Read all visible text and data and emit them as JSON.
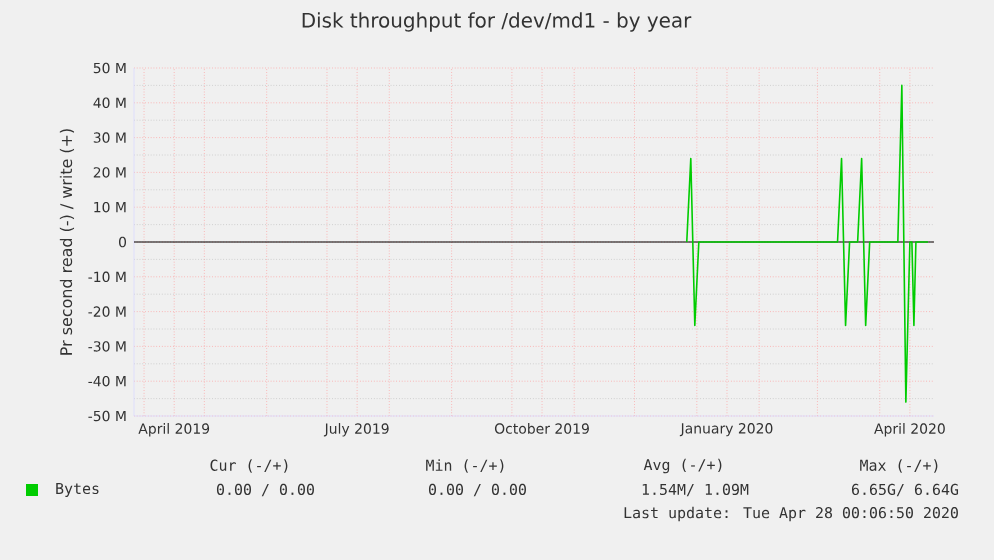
{
  "chart_data": {
    "type": "line",
    "title": "Disk throughput for /dev/md1 - by year",
    "ylabel": "Pr second read (-) / write (+)",
    "x": [
      "2019-12-27",
      "2019-12-29",
      "2019-12-31",
      "2020-01-02",
      "2020-03-11",
      "2020-03-13",
      "2020-03-15",
      "2020-03-17",
      "2020-03-21",
      "2020-03-23",
      "2020-03-25",
      "2020-03-27",
      "2020-04-10",
      "2020-04-12",
      "2020-04-14",
      "2020-04-16",
      "2020-04-17",
      "2020-04-18",
      "2020-04-19",
      "2020-04-25"
    ],
    "series": [
      {
        "name": "Bytes",
        "color": "#00cc00",
        "values": [
          0,
          24,
          -24,
          0,
          0,
          24,
          -24,
          0,
          0,
          24,
          -24,
          0,
          0,
          45,
          -46,
          0,
          0,
          -24,
          0,
          0
        ]
      }
    ],
    "xlim": [
      "2019-03-27",
      "2020-04-28"
    ],
    "xticks": [
      {
        "value": "2019-04-01",
        "label": null
      },
      {
        "value": "2019-04-16",
        "label": "April 2019"
      },
      {
        "value": "2019-05-01",
        "label": null
      },
      {
        "value": "2019-06-01",
        "label": null
      },
      {
        "value": "2019-07-01",
        "label": null
      },
      {
        "value": "2019-07-16",
        "label": "July 2019"
      },
      {
        "value": "2019-08-01",
        "label": null
      },
      {
        "value": "2019-09-01",
        "label": null
      },
      {
        "value": "2019-10-01",
        "label": null
      },
      {
        "value": "2019-10-16",
        "label": "October 2019"
      },
      {
        "value": "2019-11-01",
        "label": null
      },
      {
        "value": "2019-12-01",
        "label": null
      },
      {
        "value": "2020-01-01",
        "label": null
      },
      {
        "value": "2020-01-16",
        "label": "January 2020"
      },
      {
        "value": "2020-02-01",
        "label": null
      },
      {
        "value": "2020-03-01",
        "label": null
      },
      {
        "value": "2020-04-01",
        "label": null
      },
      {
        "value": "2020-04-16",
        "label": "April 2020"
      }
    ],
    "ylim": [
      -50,
      50
    ],
    "yticks": [
      {
        "value": -50,
        "label": "-50 M"
      },
      {
        "value": -40,
        "label": "-40 M"
      },
      {
        "value": -30,
        "label": "-30 M"
      },
      {
        "value": -20,
        "label": "-20 M"
      },
      {
        "value": -10,
        "label": "-10 M"
      },
      0,
      {
        "value": 10,
        "label": "10 M"
      },
      {
        "value": 20,
        "label": "20 M"
      },
      {
        "value": 30,
        "label": "30 M"
      },
      {
        "value": 40,
        "label": "40 M"
      },
      {
        "value": 50,
        "label": "50 M"
      }
    ],
    "ref_lines": [
      {
        "axis": "y",
        "value": 0,
        "color": "#000000"
      }
    ],
    "grid": true,
    "legend": "bottom",
    "marker": "none",
    "line_style": "solid",
    "annotations": [
      "Cur (-/+)",
      "Min (-/+)",
      "Avg (-/+)",
      "Max (-/+)",
      "0.00 / 0.00",
      "0.00 / 0.00",
      "1.54M/ 1.09M",
      "6.65G/ 6.64G",
      "Last update: Tue Apr 28 00:06:50 2020"
    ]
  }
}
